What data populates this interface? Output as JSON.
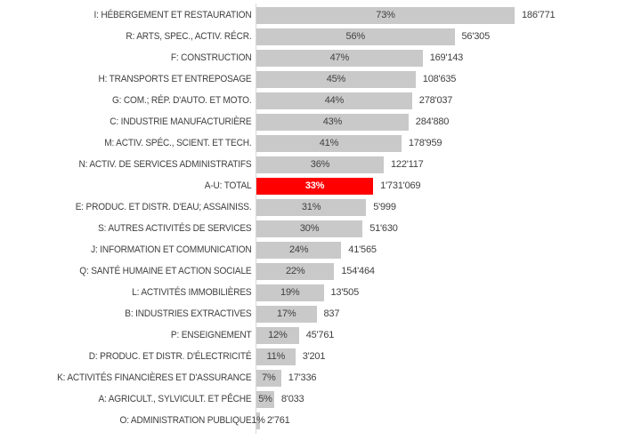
{
  "chart_data": {
    "type": "bar",
    "orientation": "horizontal",
    "title": "",
    "xlabel": "",
    "ylabel": "",
    "percent_axis_visible_max": 73,
    "bar_color": "#c9c9c9",
    "highlight_color": "#ff0000",
    "text_color": "#3f3f3f",
    "axis_line_color": "#d9d9d9",
    "grid": false,
    "legend": false,
    "bars": [
      {
        "category": "I: HÉBERGEMENT ET RESTAURATION",
        "percent": 73,
        "percent_label": "73%",
        "value_label": "186'771",
        "highlight": false
      },
      {
        "category": "R: ARTS, SPEC., ACTIV. RÉCR.",
        "percent": 56,
        "percent_label": "56%",
        "value_label": "56'305",
        "highlight": false
      },
      {
        "category": "F: CONSTRUCTION",
        "percent": 47,
        "percent_label": "47%",
        "value_label": "169'143",
        "highlight": false
      },
      {
        "category": "H: TRANSPORTS ET ENTREPOSAGE",
        "percent": 45,
        "percent_label": "45%",
        "value_label": "108'635",
        "highlight": false
      },
      {
        "category": "G: COM.; RÉP. D'AUTO. ET MOTO.",
        "percent": 44,
        "percent_label": "44%",
        "value_label": "278'037",
        "highlight": false
      },
      {
        "category": "C: INDUSTRIE MANUFACTURIÈRE",
        "percent": 43,
        "percent_label": "43%",
        "value_label": "284'880",
        "highlight": false
      },
      {
        "category": "M: ACTIV. SPÉC., SCIENT. ET TECH.",
        "percent": 41,
        "percent_label": "41%",
        "value_label": "178'959",
        "highlight": false
      },
      {
        "category": "N: ACTIV. DE SERVICES ADMINISTRATIFS",
        "percent": 36,
        "percent_label": "36%",
        "value_label": "122'117",
        "highlight": false
      },
      {
        "category": "A-U: TOTAL",
        "percent": 33,
        "percent_label": "33%",
        "value_label": "1'731'069",
        "highlight": true
      },
      {
        "category": "E: PRODUC. ET DISTR. D'EAU; ASSAINISS.",
        "percent": 31,
        "percent_label": "31%",
        "value_label": "5'999",
        "highlight": false
      },
      {
        "category": "S: AUTRES ACTIVITÉS DE SERVICES",
        "percent": 30,
        "percent_label": "30%",
        "value_label": "51'630",
        "highlight": false
      },
      {
        "category": "J: INFORMATION ET COMMUNICATION",
        "percent": 24,
        "percent_label": "24%",
        "value_label": "41'565",
        "highlight": false
      },
      {
        "category": "Q: SANTÉ HUMAINE ET ACTION SOCIALE",
        "percent": 22,
        "percent_label": "22%",
        "value_label": "154'464",
        "highlight": false
      },
      {
        "category": "L: ACTIVITÉS IMMOBILIÈRES",
        "percent": 19,
        "percent_label": "19%",
        "value_label": "13'505",
        "highlight": false
      },
      {
        "category": "B: INDUSTRIES EXTRACTIVES",
        "percent": 17,
        "percent_label": "17%",
        "value_label": "837",
        "highlight": false
      },
      {
        "category": "P: ENSEIGNEMENT",
        "percent": 12,
        "percent_label": "12%",
        "value_label": "45'761",
        "highlight": false
      },
      {
        "category": "D: PRODUC. ET DISTR. D'ÉLECTRICITÉ",
        "percent": 11,
        "percent_label": "11%",
        "value_label": "3'201",
        "highlight": false
      },
      {
        "category": "K: ACTIVITÉS FINANCIÈRES ET D'ASSURANCE",
        "percent": 7,
        "percent_label": "7%",
        "value_label": "17'336",
        "highlight": false
      },
      {
        "category": "A: AGRICULT., SYLVICULT. ET PÊCHE",
        "percent": 5,
        "percent_label": "5%",
        "value_label": "8'033",
        "highlight": false
      },
      {
        "category": "O: ADMINISTRATION PUBLIQUE",
        "percent": 1,
        "percent_label": "1%",
        "value_label": "2'761",
        "highlight": false
      }
    ]
  }
}
